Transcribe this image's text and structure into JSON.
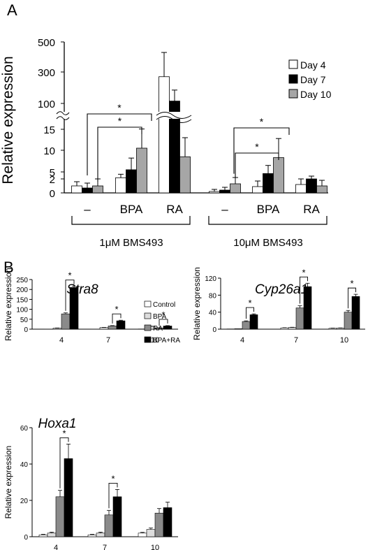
{
  "panels": {
    "a": "A",
    "b": "B"
  },
  "chart_data": [
    {
      "type": "bar",
      "id": "panelA",
      "ylabel": "Relative expression",
      "y_ticks": [
        "0",
        "2",
        "5",
        "10",
        "15",
        "100",
        "300",
        "500"
      ],
      "axis_break": true,
      "categories": [
        "–",
        "BPA",
        "RA",
        "–",
        "BPA",
        "RA"
      ],
      "groups": [
        "1μM BMS493",
        "10μM BMS493"
      ],
      "series": [
        {
          "name": "Day 4",
          "color": "#ffffff",
          "values": [
            1.0,
            2.5,
            270,
            0.2,
            0.9,
            1.2
          ],
          "errors": [
            0.6,
            1.5,
            160,
            0.3,
            0.8,
            0.8
          ]
        },
        {
          "name": "Day 7",
          "color": "#000000",
          "values": [
            0.7,
            5.5,
            115,
            0.4,
            4.3,
            2.0
          ],
          "errors": [
            0.7,
            2.7,
            70,
            0.4,
            2.2,
            1.2
          ]
        },
        {
          "name": "Day 10",
          "color": "#a6a6a6",
          "values": [
            1.0,
            10.5,
            8.5,
            1.3,
            8.3,
            1.0
          ],
          "errors": [
            1.0,
            5.5,
            4.5,
            1.3,
            4.5,
            0.8
          ]
        }
      ],
      "significance": [
        "*",
        "*",
        "*",
        "*"
      ]
    },
    {
      "type": "bar",
      "id": "stra8",
      "title": "Stra8",
      "ylabel": "Relative expression",
      "ylim": [
        0,
        250
      ],
      "y_ticks": [
        "0",
        "50",
        "100",
        "150",
        "200",
        "250"
      ],
      "categories": [
        "4",
        "7",
        "10"
      ],
      "series": [
        {
          "name": "Control",
          "color": "#ffffff",
          "values": [
            0.5,
            0.5,
            1
          ],
          "errors": [
            0,
            0,
            0
          ]
        },
        {
          "name": "BPA",
          "color": "#dddddd",
          "values": [
            5,
            8,
            14
          ],
          "errors": [
            1,
            1,
            1
          ]
        },
        {
          "name": "RA",
          "color": "#8a8a8a",
          "values": [
            77,
            16,
            6
          ],
          "errors": [
            5,
            2,
            1
          ]
        },
        {
          "name": "BPA+RA",
          "color": "#000000",
          "values": [
            210,
            42,
            16
          ],
          "errors": [
            6,
            3,
            2
          ]
        }
      ],
      "significance": [
        "*",
        "*",
        "*"
      ]
    },
    {
      "type": "bar",
      "id": "cyp26a1",
      "title": "Cyp26a1",
      "ylabel": "Relative expression",
      "ylim": [
        0,
        120
      ],
      "y_ticks": [
        "0",
        "40",
        "80",
        "120"
      ],
      "categories": [
        "4",
        "7",
        "10"
      ],
      "series": [
        {
          "name": "Control",
          "color": "#ffffff",
          "values": [
            0.5,
            3,
            2
          ],
          "errors": [
            0,
            0.5,
            0.5
          ]
        },
        {
          "name": "BPA",
          "color": "#dddddd",
          "values": [
            1,
            4,
            2.5
          ],
          "errors": [
            0,
            0.5,
            0.5
          ]
        },
        {
          "name": "RA",
          "color": "#8a8a8a",
          "values": [
            18,
            50,
            40
          ],
          "errors": [
            1.5,
            5,
            4
          ]
        },
        {
          "name": "BPA+RA",
          "color": "#000000",
          "values": [
            34,
            100,
            77
          ],
          "errors": [
            2,
            8,
            5
          ]
        }
      ],
      "significance": [
        "*",
        "*",
        "*"
      ]
    },
    {
      "type": "bar",
      "id": "hoxa1",
      "title": "Hoxa1",
      "ylabel": "Relative expression",
      "ylim": [
        0,
        60
      ],
      "y_ticks": [
        "0",
        "20",
        "40",
        "60"
      ],
      "categories": [
        "4",
        "7",
        "10"
      ],
      "series": [
        {
          "name": "Control",
          "color": "#ffffff",
          "values": [
            1,
            1,
            2
          ],
          "errors": [
            0.3,
            0.3,
            0.4
          ]
        },
        {
          "name": "BPA",
          "color": "#dddddd",
          "values": [
            2,
            2,
            4
          ],
          "errors": [
            0.5,
            0.5,
            0.8
          ]
        },
        {
          "name": "RA",
          "color": "#8a8a8a",
          "values": [
            22,
            12,
            13
          ],
          "errors": [
            3.5,
            2.5,
            2.5
          ]
        },
        {
          "name": "BPA+RA",
          "color": "#000000",
          "values": [
            43,
            22,
            16
          ],
          "errors": [
            8,
            4,
            3
          ]
        }
      ],
      "significance": [
        "*",
        "*"
      ]
    }
  ]
}
